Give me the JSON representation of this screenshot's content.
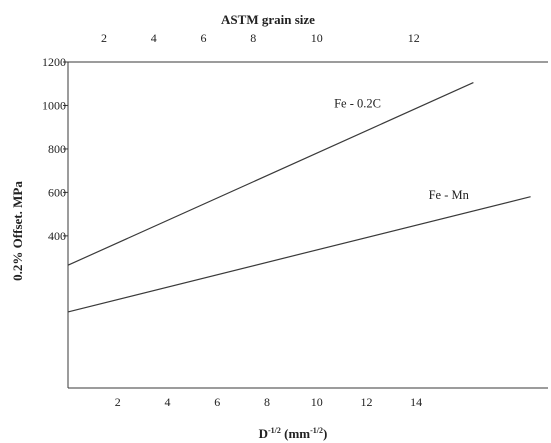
{
  "chart_data": {
    "type": "line",
    "title": "",
    "top_axis": {
      "label": "ASTM grain size",
      "ticks": [
        {
          "label": "2",
          "x": 1.45
        },
        {
          "label": "4",
          "x": 3.45
        },
        {
          "label": "6",
          "x": 5.45
        },
        {
          "label": "8",
          "x": 7.45
        },
        {
          "label": "10",
          "x": 10.0
        },
        {
          "label": "12",
          "x": 13.9
        }
      ]
    },
    "x_axis": {
      "label_main": "D",
      "label_sup": "-1/2",
      "label_unit_open": " (mm",
      "label_unit_sup": "-1/2",
      "label_unit_close": ")",
      "xlim": [
        0,
        19.3
      ],
      "ticks": [
        "2",
        "4",
        "6",
        "8",
        "10",
        "12",
        "14"
      ],
      "tick_values": [
        2,
        4,
        6,
        8,
        10,
        12,
        14
      ]
    },
    "y_axis": {
      "label": "0.2% Offset. MPa",
      "ylim": [
        -300,
        1200
      ],
      "ticks": [
        "400",
        "600",
        "800",
        "1000",
        "1200"
      ],
      "tick_values": [
        400,
        600,
        800,
        1000,
        1200
      ]
    },
    "grid": false,
    "series": [
      {
        "name": "Fe - 0.2C",
        "x": [
          0,
          16.3
        ],
        "y": [
          265,
          1105
        ],
        "label_at": {
          "x": 10.7,
          "y": 990
        }
      },
      {
        "name": "Fe - Mn",
        "x": [
          0,
          18.6
        ],
        "y": [
          50,
          580
        ],
        "label_at": {
          "x": 14.5,
          "y": 570
        }
      }
    ],
    "line_color": "#3a3a3a"
  }
}
